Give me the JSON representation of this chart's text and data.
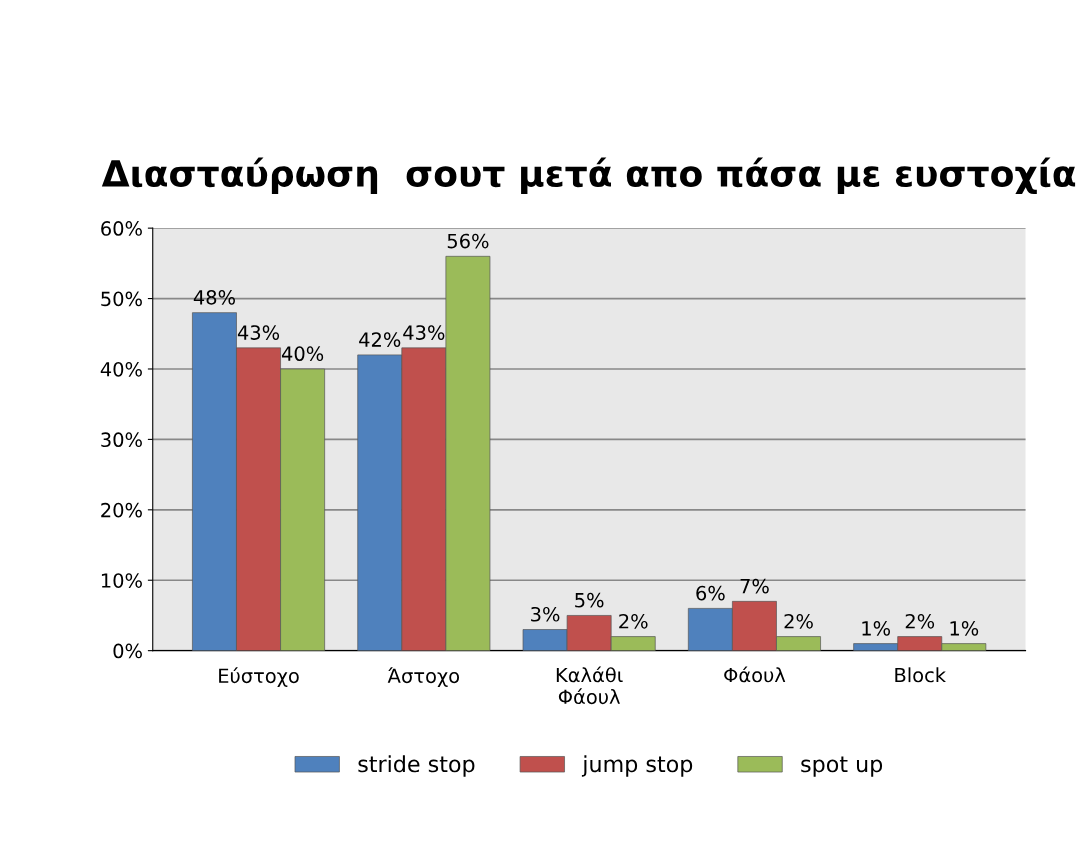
{
  "chart_data": {
    "type": "bar",
    "title": "Διασταύρωση  σουτ μετά απο πάσα με ευστοχία",
    "categories": [
      "Εύστοχο",
      "Άστοχο",
      "Καλάθι\nΦάουλ",
      "Φάουλ",
      "Block"
    ],
    "series": [
      {
        "name": "stride stop",
        "color": "#4f81bd",
        "values": [
          48,
          42,
          3,
          6,
          1
        ],
        "value_labels": [
          "48%",
          "42%",
          "3%",
          "6%",
          "1%"
        ]
      },
      {
        "name": "jump stop",
        "color": "#c0504d",
        "values": [
          43,
          43,
          5,
          7,
          2
        ],
        "value_labels": [
          "43%",
          "43%",
          "5%",
          "7%",
          "2%"
        ]
      },
      {
        "name": "spot up",
        "color": "#9bbb59",
        "values": [
          40,
          56,
          2,
          2,
          1
        ],
        "value_labels": [
          "40%",
          "56%",
          "2%",
          "2%",
          "1%"
        ]
      }
    ],
    "ylim": [
      0,
      60
    ],
    "yticks": [
      {
        "value": 0,
        "label": "0%"
      },
      {
        "value": 10,
        "label": "10%"
      },
      {
        "value": 20,
        "label": "20%"
      },
      {
        "value": 30,
        "label": "30%"
      },
      {
        "value": 40,
        "label": "40%"
      },
      {
        "value": 50,
        "label": "50%"
      },
      {
        "value": 60,
        "label": "60%"
      }
    ],
    "grid": "y",
    "legend": "bottom"
  }
}
